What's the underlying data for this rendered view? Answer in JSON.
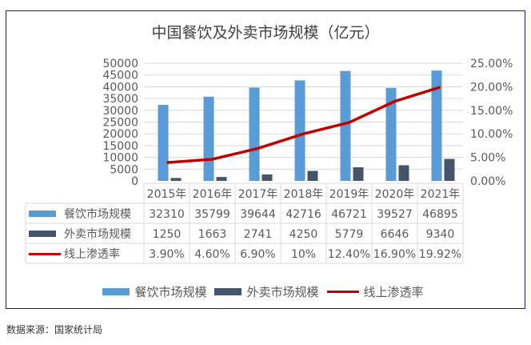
{
  "title": "中国餐饮及外卖市场规模（亿元）",
  "source_note": "数据来源：国家统计局",
  "colors": {
    "catering": "#5b9bd5",
    "takeout": "#44546a",
    "penetration": "#c00000",
    "frame": "#1a1a80"
  },
  "left_axis_ticks": [
    "50000",
    "45000",
    "40000",
    "35000",
    "30000",
    "25000",
    "20000",
    "15000",
    "10000",
    "5000",
    "0"
  ],
  "right_axis_ticks": [
    "25.00%",
    "20.00%",
    "15.00%",
    "10.00%",
    "5.00%",
    "0.00%"
  ],
  "table": {
    "years": [
      "2015年",
      "2016年",
      "2017年",
      "2018年",
      "2019年",
      "2020年",
      "2021年"
    ],
    "rows": [
      {
        "label": "餐饮市场规模",
        "values": [
          "32310",
          "35799",
          "39644",
          "42716",
          "46721",
          "39527",
          "46895"
        ]
      },
      {
        "label": "外卖市场规模",
        "values": [
          "1250",
          "1663",
          "2741",
          "4250",
          "5779",
          "6646",
          "9340"
        ]
      },
      {
        "label": "线上渗透率",
        "values": [
          "3.90%",
          "4.60%",
          "6.90%",
          "10%",
          "12.40%",
          "16.90%",
          "19.92%"
        ]
      }
    ]
  },
  "legend": [
    "餐饮市场规模",
    "外卖市场规模",
    "线上渗透率"
  ],
  "chart_data": {
    "type": "bar",
    "title": "中国餐饮及外卖市场规模（亿元）",
    "categories": [
      "2015年",
      "2016年",
      "2017年",
      "2018年",
      "2019年",
      "2020年",
      "2021年"
    ],
    "series": [
      {
        "name": "餐饮市场规模",
        "type": "bar",
        "axis": "left",
        "values": [
          32310,
          35799,
          39644,
          42716,
          46721,
          39527,
          46895
        ]
      },
      {
        "name": "外卖市场规模",
        "type": "bar",
        "axis": "left",
        "values": [
          1250,
          1663,
          2741,
          4250,
          5779,
          6646,
          9340
        ]
      },
      {
        "name": "线上渗透率",
        "type": "line",
        "axis": "right",
        "values": [
          3.9,
          4.6,
          6.9,
          10.0,
          12.4,
          16.9,
          19.92
        ],
        "unit": "%"
      }
    ],
    "ylim_left": [
      0,
      50000
    ],
    "ylim_right": [
      0,
      25
    ],
    "xlabel": "",
    "ylabel": "",
    "grid": true,
    "legend_position": "bottom",
    "data_table": true
  }
}
